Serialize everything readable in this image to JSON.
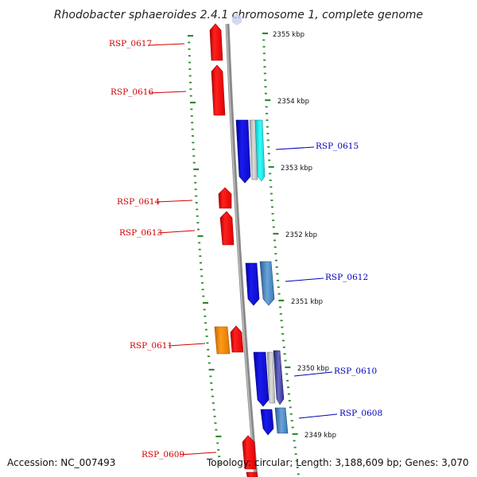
{
  "title": "Rhodobacter sphaeroides 2.4.1 chromosome 1, complete genome",
  "accession": "Accession: NC_007493",
  "topology": "Topology: circular; Length: 3,188,609 bp; Genes: 3,070",
  "colors": {
    "backbone": "#8a8a8a",
    "tick": "#2e8b2e",
    "label_left": "#d40000",
    "label_right": "#0000bb",
    "red": "#ee1111",
    "blue": "#1111dd",
    "orange": "#ff8800",
    "cyan": "#22e5e5",
    "steel": "#4a86c0",
    "gray": "#bbbbbb",
    "purple": "#4444aa"
  },
  "kbp_labels": [
    "2355 kbp",
    "2354 kbp",
    "2353 kbp",
    "2352 kbp",
    "2351 kbp",
    "2350 kbp",
    "2349 kbp"
  ],
  "genes_left": [
    {
      "id": "RSP_0617",
      "color": "red"
    },
    {
      "id": "RSP_0616",
      "color": "red"
    },
    {
      "id": "RSP_0614",
      "color": "red"
    },
    {
      "id": "RSP_0613",
      "color": "red"
    },
    {
      "id": "RSP_0611",
      "color": "orange"
    },
    {
      "id": "RSP_0609",
      "color": "red"
    }
  ],
  "genes_right": [
    {
      "id": "RSP_0615",
      "color": "blue"
    },
    {
      "id": "RSP_0612",
      "color": "blue"
    },
    {
      "id": "RSP_0610",
      "color": "blue"
    },
    {
      "id": "RSP_0608",
      "color": "blue"
    }
  ]
}
